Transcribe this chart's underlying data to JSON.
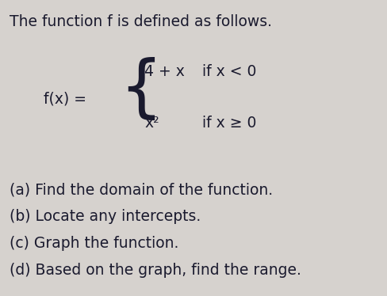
{
  "background_color": "#d6d2ce",
  "text_color": "#1a1a2e",
  "title_line": "The function f is defined as follows.",
  "title_fontsize": 13.5,
  "body_fontsize": 13.5,
  "math_fontsize": 13.5,
  "questions": [
    "(a) Find the domain of the function.",
    "(b) Locate any intercepts.",
    "(c) Graph the function.",
    "(d) Based on the graph, find the range."
  ],
  "fx_label": "f(x) =",
  "upper_expr": "4 + x",
  "upper_cond": "if x < 0",
  "lower_expr": "x²",
  "lower_cond": "if x ≥ 0"
}
